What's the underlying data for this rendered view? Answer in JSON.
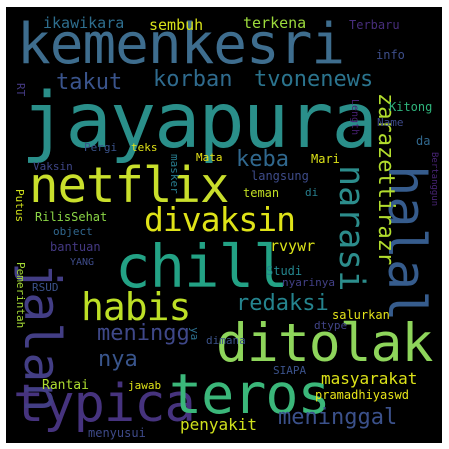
{
  "colors": {
    "background": "#000000",
    "border": "#ffffff"
  },
  "words": [
    {
      "id": "kemenkesri",
      "text": "kemenkesri",
      "color": "#3e6d8e",
      "orientation": "horizontal"
    },
    {
      "id": "jayapura",
      "text": "jayapura",
      "color": "#2a8f8a",
      "orientation": "horizontal"
    },
    {
      "id": "netflix",
      "text": "netflix",
      "color": "#c9df2c",
      "orientation": "horizontal"
    },
    {
      "id": "chill",
      "text": "chill",
      "color": "#23a285",
      "orientation": "horizontal"
    },
    {
      "id": "ditolak",
      "text": "ditolak",
      "color": "#8ed55b",
      "orientation": "horizontal"
    },
    {
      "id": "typica",
      "text": "typica",
      "color": "#46337e",
      "orientation": "horizontal"
    },
    {
      "id": "teros",
      "text": "teros",
      "color": "#3bb77a",
      "orientation": "horizontal"
    },
    {
      "id": "halal",
      "text": "halal",
      "color": "#365c8d",
      "orientation": "vertical"
    },
    {
      "id": "jalan",
      "text": "jalan",
      "color": "#433e85",
      "orientation": "vertical"
    },
    {
      "id": "habis",
      "text": "habis",
      "color": "#bddf26",
      "orientation": "horizontal"
    },
    {
      "id": "divaksin",
      "text": "divaksin",
      "color": "#dfe318",
      "orientation": "horizontal"
    },
    {
      "id": "narasi",
      "text": "narasi",
      "color": "#2c8d8c",
      "orientation": "vertical"
    },
    {
      "id": "keba",
      "text": "keba",
      "color": "#30688e",
      "orientation": "horizontal"
    },
    {
      "id": "takut",
      "text": "takut",
      "color": "#3a548c",
      "orientation": "horizontal"
    },
    {
      "id": "korban",
      "text": "korban",
      "color": "#2f6b8e",
      "orientation": "horizontal"
    },
    {
      "id": "tvonenews",
      "text": "tvonenews",
      "color": "#2b748e",
      "orientation": "horizontal"
    },
    {
      "id": "zarazettirazr",
      "text": "zarazettirazr",
      "color": "#b2dd2d",
      "orientation": "vertical"
    },
    {
      "id": "redaksi",
      "text": "redaksi",
      "color": "#25848e",
      "orientation": "horizontal"
    },
    {
      "id": "meningg",
      "text": "meningg",
      "color": "#3f4889",
      "orientation": "horizontal"
    },
    {
      "id": "nya",
      "text": "nya",
      "color": "#39558c",
      "orientation": "horizontal"
    },
    {
      "id": "meninggal",
      "text": "meninggal",
      "color": "#3b518b",
      "orientation": "horizontal"
    },
    {
      "id": "masyarakat",
      "text": "masyarakat",
      "color": "#dde318",
      "orientation": "horizontal"
    },
    {
      "id": "penyakit",
      "text": "penyakit",
      "color": "#d0e11c",
      "orientation": "horizontal"
    },
    {
      "id": "ikawikara",
      "text": "ikawikara",
      "color": "#2e6e8e",
      "orientation": "horizontal"
    },
    {
      "id": "sembuh",
      "text": "sembuh",
      "color": "#d8e219",
      "orientation": "horizontal"
    },
    {
      "id": "terkena",
      "text": "terkena",
      "color": "#9bd93c",
      "orientation": "horizontal"
    },
    {
      "id": "Terbaru",
      "text": "Terbaru",
      "color": "#472d7b",
      "orientation": "horizontal"
    },
    {
      "id": "info",
      "text": "info",
      "color": "#3d4e8a",
      "orientation": "horizontal"
    },
    {
      "id": "RT",
      "text": "RT",
      "color": "#443a83",
      "orientation": "vertical"
    },
    {
      "id": "Length",
      "text": "Length",
      "color": "#482173",
      "orientation": "vertical"
    },
    {
      "id": "Kitong",
      "text": "Kitong",
      "color": "#2fb47c",
      "orientation": "horizontal"
    },
    {
      "id": "Name",
      "text": "Name",
      "color": "#3e4a89",
      "orientation": "horizontal"
    },
    {
      "id": "da",
      "text": "da",
      "color": "#31688e",
      "orientation": "horizontal"
    },
    {
      "id": "Pergi",
      "text": "Pergi",
      "color": "#3a538b",
      "orientation": "horizontal"
    },
    {
      "id": "teks",
      "text": "teks",
      "color": "#e2e418",
      "orientation": "horizontal"
    },
    {
      "id": "Mata",
      "text": "Mata",
      "color": "#e7e419",
      "orientation": "horizontal"
    },
    {
      "id": "Mari",
      "text": "Mari",
      "color": "#dde318",
      "orientation": "horizontal"
    },
    {
      "id": "Vaksin",
      "text": "Vaksin",
      "color": "#3f4788",
      "orientation": "horizontal"
    },
    {
      "id": "masker",
      "text": "masker",
      "color": "#287c8e",
      "orientation": "vertical"
    },
    {
      "id": "langsung",
      "text": "langsung",
      "color": "#3e4c8a",
      "orientation": "horizontal"
    },
    {
      "id": "Bertanggun",
      "text": "Bertanggun",
      "color": "#482475",
      "orientation": "vertical"
    },
    {
      "id": "Putus",
      "text": "Putus",
      "color": "#d2e21b",
      "orientation": "vertical"
    },
    {
      "id": "RilisSehat",
      "text": "RilisSehat",
      "color": "#8bd646",
      "orientation": "horizontal"
    },
    {
      "id": "teman",
      "text": "teman",
      "color": "#c2df23",
      "orientation": "horizontal"
    },
    {
      "id": "di",
      "text": "di",
      "color": "#277f8e",
      "orientation": "horizontal"
    },
    {
      "id": "object",
      "text": "object",
      "color": "#31678e",
      "orientation": "horizontal"
    },
    {
      "id": "rvywr",
      "text": "rvywr",
      "color": "#dae319",
      "orientation": "horizontal"
    },
    {
      "id": "bantuan",
      "text": "bantuan",
      "color": "#443983",
      "orientation": "horizontal"
    },
    {
      "id": "YANG",
      "text": "YANG",
      "color": "#3e4c8a",
      "orientation": "horizontal"
    },
    {
      "id": "Studi",
      "text": "Studi",
      "color": "#24868e",
      "orientation": "horizontal"
    },
    {
      "id": "Pemerintah",
      "text": "Pemerintah",
      "color": "#a5db36",
      "orientation": "vertical"
    },
    {
      "id": "RSUD",
      "text": "RSUD",
      "color": "#3b528b",
      "orientation": "horizontal"
    },
    {
      "id": "nyarinya",
      "text": "nyarinya",
      "color": "#424086",
      "orientation": "horizontal"
    },
    {
      "id": "salurkan",
      "text": "salurkan",
      "color": "#e5e419",
      "orientation": "horizontal"
    },
    {
      "id": "dtype",
      "text": "dtype",
      "color": "#414487",
      "orientation": "horizontal"
    },
    {
      "id": "ya",
      "text": "ya",
      "color": "#2d708e",
      "orientation": "vertical"
    },
    {
      "id": "dimana",
      "text": "dimana",
      "color": "#3b528b",
      "orientation": "horizontal"
    },
    {
      "id": "SIAPA",
      "text": "SIAPA",
      "color": "#3b528b",
      "orientation": "horizontal"
    },
    {
      "id": "Rantai",
      "text": "Rantai",
      "color": "#addc30",
      "orientation": "horizontal"
    },
    {
      "id": "jawab",
      "text": "jawab",
      "color": "#dfe318",
      "orientation": "horizontal"
    },
    {
      "id": "pramadhiyaswd",
      "text": "pramadhiyaswd",
      "color": "#e8e419",
      "orientation": "horizontal"
    },
    {
      "id": "menyusui",
      "text": "menyusui",
      "color": "#3e4a89",
      "orientation": "horizontal"
    }
  ]
}
